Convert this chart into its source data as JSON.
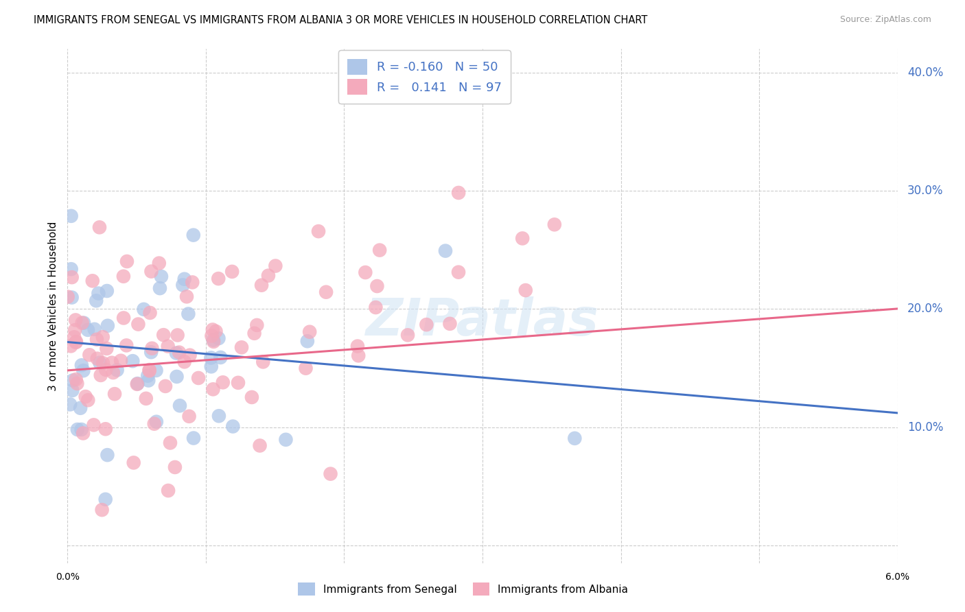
{
  "title": "IMMIGRANTS FROM SENEGAL VS IMMIGRANTS FROM ALBANIA 3 OR MORE VEHICLES IN HOUSEHOLD CORRELATION CHART",
  "source": "Source: ZipAtlas.com",
  "ylabel": "3 or more Vehicles in Household",
  "ytick_vals": [
    0.0,
    0.1,
    0.2,
    0.3,
    0.4
  ],
  "ytick_labels": [
    "",
    "10.0%",
    "20.0%",
    "30.0%",
    "40.0%"
  ],
  "xlim": [
    0.0,
    0.06
  ],
  "ylim": [
    -0.015,
    0.42
  ],
  "r_senegal": -0.16,
  "n_senegal": 50,
  "r_albania": 0.141,
  "n_albania": 97,
  "color_senegal": "#aec6e8",
  "color_albania": "#f4aabc",
  "line_color_senegal": "#4472c4",
  "line_color_albania": "#e8688a",
  "watermark": "ZIPatlas",
  "sen_intercept": 0.172,
  "sen_slope": -1.0,
  "alb_intercept": 0.148,
  "alb_slope": 0.87
}
